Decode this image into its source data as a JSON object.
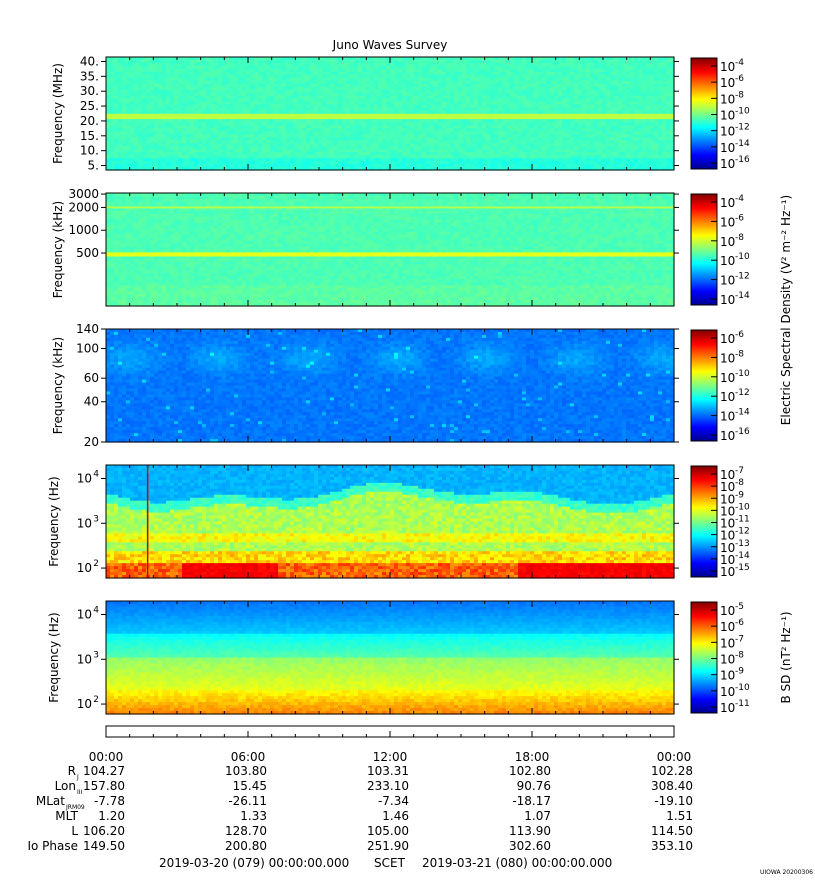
{
  "title": "Juno Waves Survey",
  "watermark": "UIOWA 20200306",
  "colors": {
    "jet": [
      "#00008f",
      "#0000ff",
      "#0080ff",
      "#00ffff",
      "#80ff80",
      "#ffff00",
      "#ff8000",
      "#ff0000",
      "#800000"
    ]
  },
  "chart_data": [
    {
      "type": "heatmap",
      "ylabel": "Frequency (MHz)",
      "yscale": "linear",
      "ylim": [
        3.5,
        41.5
      ],
      "yticks": [
        {
          "v": 5,
          "t": "5."
        },
        {
          "v": 10,
          "t": "10."
        },
        {
          "v": 15,
          "t": "15."
        },
        {
          "v": 20,
          "t": "20."
        },
        {
          "v": 25,
          "t": "25."
        },
        {
          "v": 30,
          "t": "30."
        },
        {
          "v": 35,
          "t": "35."
        },
        {
          "v": 40,
          "t": "40."
        }
      ],
      "colorbar": {
        "ticks": [
          "-4",
          "-6",
          "-8",
          "-10",
          "-12",
          "-14",
          "-16"
        ],
        "base": "10",
        "label": ""
      },
      "background_level": 0.44,
      "bands": [
        {
          "center": 21.5,
          "width": 1.8,
          "level": 0.56
        }
      ]
    },
    {
      "type": "heatmap",
      "ylabel": "Frequency (kHz)",
      "yscale": "log",
      "ylim": [
        100,
        3100
      ],
      "yticks": [
        {
          "v": 500,
          "t": "500"
        },
        {
          "v": 1000,
          "t": "1000"
        },
        {
          "v": 2000,
          "t": "2000"
        },
        {
          "v": 3000,
          "t": "3000"
        }
      ],
      "colorbar": {
        "ticks": [
          "-4",
          "-6",
          "-8",
          "-10",
          "-12",
          "-14"
        ],
        "base": "10",
        "label": "Electric Spectral Density (V² m⁻² Hz⁻¹)"
      },
      "background_level": 0.45,
      "bands": [
        {
          "center": 2000,
          "width": 120,
          "level": 0.55
        },
        {
          "center": 480,
          "width": 60,
          "level": 0.6
        }
      ]
    },
    {
      "type": "heatmap",
      "ylabel": "Frequency (kHz)",
      "yscale": "log",
      "ylim": [
        20,
        140
      ],
      "yticks": [
        {
          "v": 20,
          "t": "20"
        },
        {
          "v": 40,
          "t": "40"
        },
        {
          "v": 60,
          "t": "60"
        },
        {
          "v": 100,
          "t": "100"
        },
        {
          "v": 140,
          "t": "140"
        }
      ],
      "colorbar": {
        "ticks": [
          "-6",
          "-8",
          "-10",
          "-12",
          "-14",
          "-16"
        ],
        "base": "10",
        "label": ""
      },
      "background_level": 0.24,
      "bands": []
    },
    {
      "type": "heatmap",
      "ylabel": "Frequency (Hz)",
      "yscale": "log",
      "ylim": [
        60,
        20000
      ],
      "yticks": [
        {
          "v": 100,
          "t": "10",
          "e": "2"
        },
        {
          "v": 1000,
          "t": "10",
          "e": "3"
        },
        {
          "v": 10000,
          "t": "10",
          "e": "4"
        }
      ],
      "colorbar": {
        "ticks": [
          "-7",
          "-8",
          "-9",
          "-10",
          "-11",
          "-12",
          "-13",
          "-14",
          "-15"
        ],
        "base": "10",
        "label": ""
      },
      "background_level": 0.3,
      "bands": []
    },
    {
      "type": "heatmap",
      "ylabel": "Frequency (Hz)",
      "yscale": "log",
      "ylim": [
        60,
        20000
      ],
      "yticks": [
        {
          "v": 100,
          "t": "10",
          "e": "2"
        },
        {
          "v": 1000,
          "t": "10",
          "e": "3"
        },
        {
          "v": 10000,
          "t": "10",
          "e": "4"
        }
      ],
      "colorbar": {
        "ticks": [
          "-5",
          "-6",
          "-7",
          "-8",
          "-9",
          "-10",
          "-11"
        ],
        "base": "10",
        "label": "B SD (nT² Hz⁻¹)"
      },
      "background_level": 0.3,
      "bands": []
    }
  ],
  "time_axis": {
    "ticks": [
      "00:00",
      "06:00",
      "12:00",
      "18:00",
      "00:00"
    ]
  },
  "ephemeris": [
    {
      "label": "R",
      "sub": "J",
      "values": [
        "104.27",
        "103.80",
        "103.31",
        "102.80",
        "102.28"
      ]
    },
    {
      "label": "Lon",
      "sub": "III",
      "values": [
        "157.80",
        "15.45",
        "233.10",
        "90.76",
        "308.40"
      ]
    },
    {
      "label": "MLat",
      "sub": "JRM09",
      "values": [
        "-7.78",
        "-26.11",
        "-7.34",
        "-18.17",
        "-19.10"
      ]
    },
    {
      "label": "MLT",
      "sub": "",
      "values": [
        "1.20",
        "1.33",
        "1.46",
        "1.07",
        "1.51"
      ]
    },
    {
      "label": "L",
      "sub": "",
      "values": [
        "106.20",
        "128.70",
        "105.00",
        "113.90",
        "114.50"
      ]
    },
    {
      "label": "Io Phase",
      "sub": "",
      "values": [
        "149.50",
        "200.80",
        "251.90",
        "302.60",
        "353.10"
      ]
    }
  ],
  "footer": {
    "start": "2019-03-20 (079) 00:00:00.000",
    "scet": "SCET",
    "end": "2019-03-21 (080) 00:00:00.000"
  }
}
